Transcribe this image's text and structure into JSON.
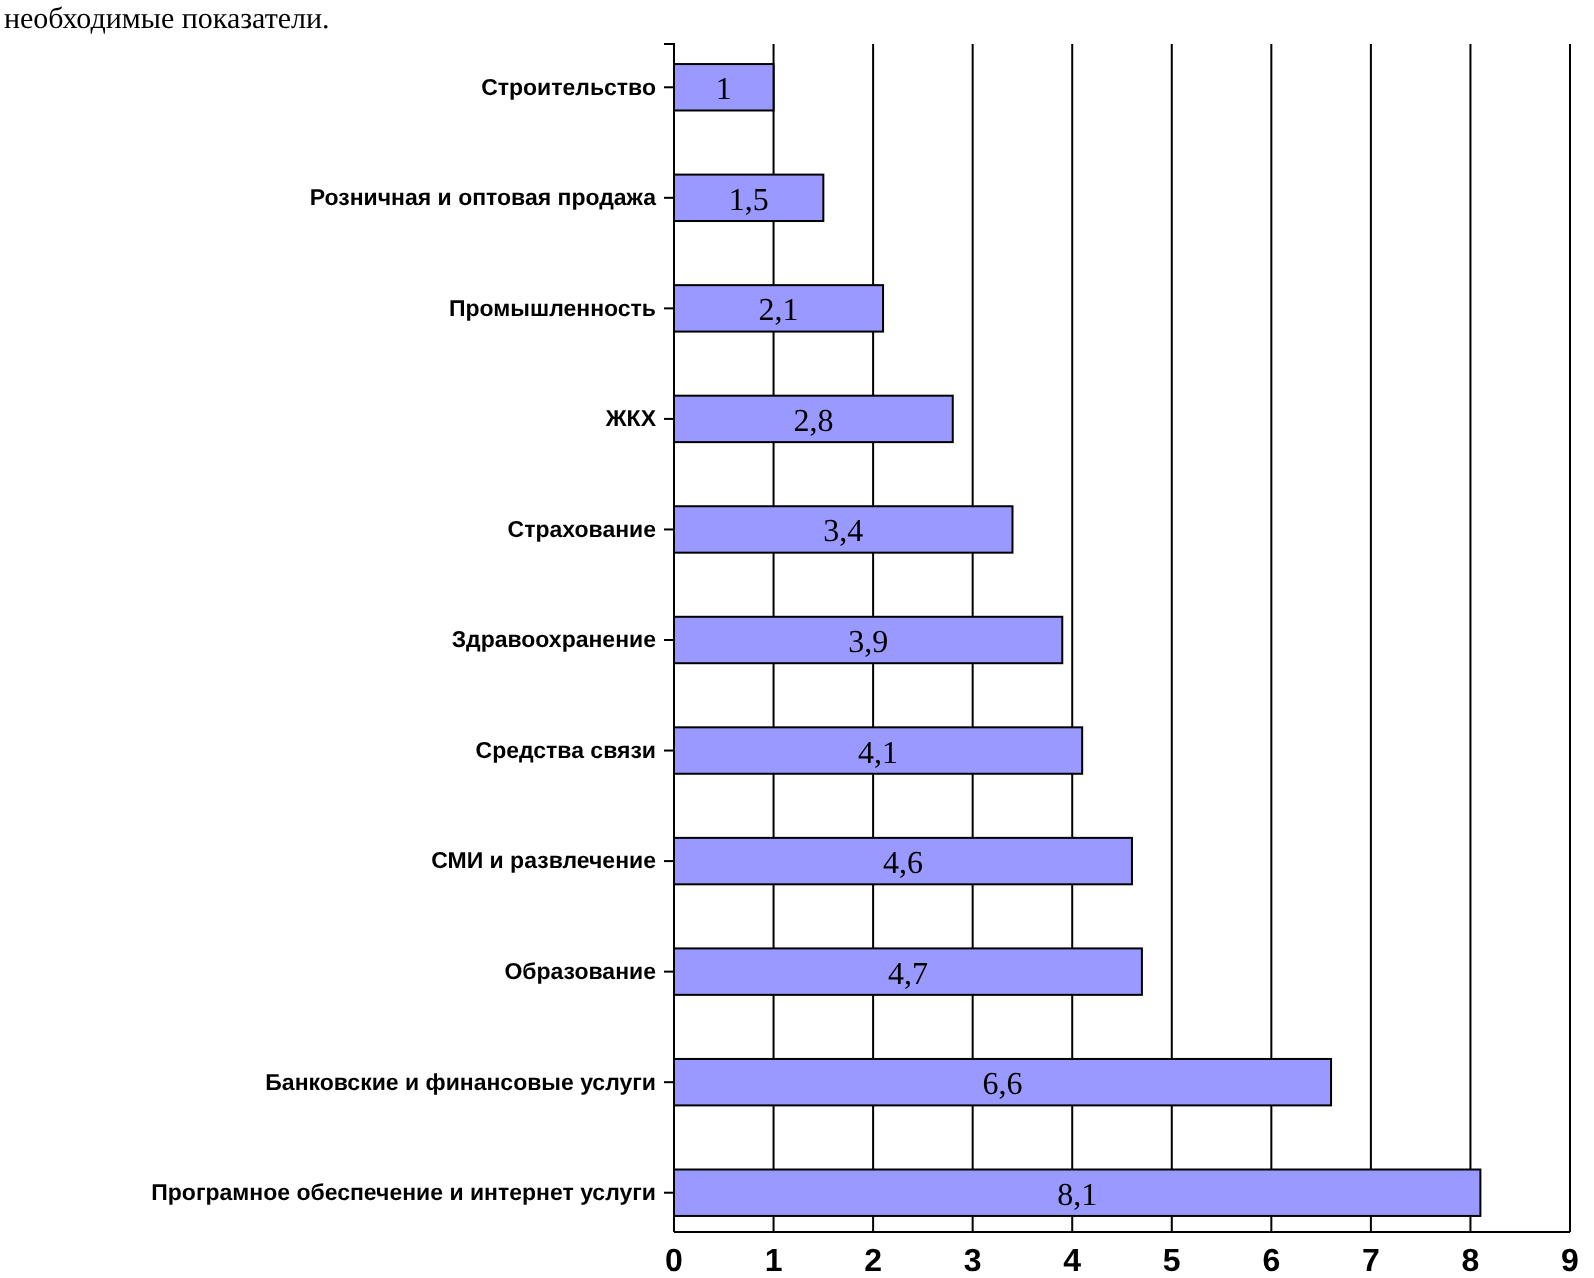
{
  "chart_data": {
    "type": "bar",
    "orientation": "horizontal",
    "categories": [
      "Строительство",
      "Розничная и оптовая продажа",
      "Промышленность",
      "ЖКХ",
      "Страхование",
      "Здравоохранение",
      "Средства связи",
      "СМИ и развлечение",
      "Образование",
      "Банковские и финансовые услуги",
      "Програмное обеспечение и интернет услуги"
    ],
    "values": [
      1,
      1.5,
      2.1,
      2.8,
      3.4,
      3.9,
      4.1,
      4.6,
      4.7,
      6.6,
      8.1
    ],
    "value_labels": [
      "1",
      "1,5",
      "2,1",
      "2,8",
      "3,4",
      "3,9",
      "4,1",
      "4,6",
      "4,7",
      "6,6",
      "8,1"
    ],
    "color": "#9999ff",
    "xlim": [
      0,
      9
    ],
    "xticks": [
      0,
      1,
      2,
      3,
      4,
      5,
      6,
      7,
      8,
      9
    ],
    "grid": "x",
    "annotations": [
      "необходимые показатели."
    ]
  }
}
